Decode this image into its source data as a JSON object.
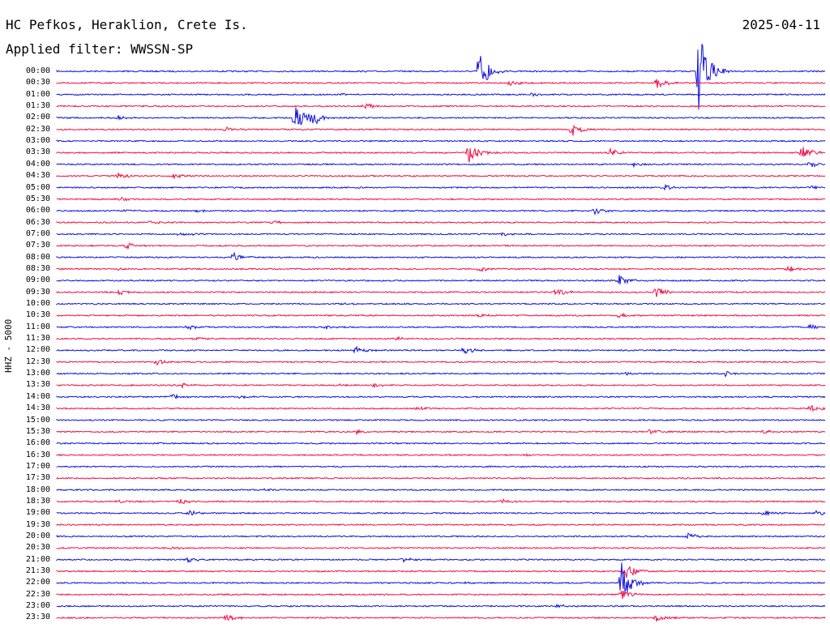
{
  "header": {
    "station": "HC Pefkos, Heraklion, Crete Is.",
    "date": "2025-04-11",
    "filter": "Applied filter: WWSSN-SP"
  },
  "channel_label": "HHZ - 5000",
  "colors": {
    "even_row": "#1010e0",
    "odd_row": "#f01048"
  },
  "rows": [
    {
      "time": "00:00",
      "events": [
        {
          "at": 0.55,
          "amp": 3.2
        },
        {
          "at": 0.835,
          "amp": 6.0
        }
      ]
    },
    {
      "time": "00:30",
      "events": [
        {
          "at": 0.59,
          "amp": 0.5
        },
        {
          "at": 0.78,
          "amp": 0.9
        }
      ]
    },
    {
      "time": "01:00",
      "events": [
        {
          "at": 0.37,
          "amp": 0.2
        },
        {
          "at": 0.62,
          "amp": 0.3
        }
      ]
    },
    {
      "time": "01:30",
      "events": [
        {
          "at": 0.4,
          "amp": 0.5
        }
      ]
    },
    {
      "time": "02:00",
      "events": [
        {
          "at": 0.31,
          "amp": 1.8
        },
        {
          "at": 0.33,
          "amp": 1.4
        },
        {
          "at": 0.08,
          "amp": 0.3
        }
      ]
    },
    {
      "time": "02:30",
      "events": [
        {
          "at": 0.22,
          "amp": 0.4
        },
        {
          "at": 0.67,
          "amp": 1.0
        }
      ]
    },
    {
      "time": "03:00",
      "events": []
    },
    {
      "time": "03:30",
      "events": [
        {
          "at": 0.535,
          "amp": 2.0
        },
        {
          "at": 0.72,
          "amp": 0.7
        },
        {
          "at": 0.97,
          "amp": 0.9
        }
      ]
    },
    {
      "time": "04:00",
      "events": [
        {
          "at": 0.75,
          "amp": 0.3
        },
        {
          "at": 0.98,
          "amp": 0.4
        }
      ]
    },
    {
      "time": "04:30",
      "events": [
        {
          "at": 0.08,
          "amp": 0.5
        },
        {
          "at": 0.15,
          "amp": 0.4
        }
      ]
    },
    {
      "time": "05:00",
      "events": [
        {
          "at": 0.79,
          "amp": 0.4
        },
        {
          "at": 0.98,
          "amp": 0.3
        }
      ]
    },
    {
      "time": "05:30",
      "events": [
        {
          "at": 0.08,
          "amp": 0.3
        }
      ]
    },
    {
      "time": "06:00",
      "events": [
        {
          "at": 0.09,
          "amp": 0.2
        },
        {
          "at": 0.18,
          "amp": 0.3
        },
        {
          "at": 0.7,
          "amp": 0.5
        }
      ]
    },
    {
      "time": "06:30",
      "events": [
        {
          "at": 0.12,
          "amp": 0.3
        },
        {
          "at": 0.28,
          "amp": 0.3
        }
      ]
    },
    {
      "time": "07:00",
      "events": [
        {
          "at": 0.16,
          "amp": 0.4
        },
        {
          "at": 0.58,
          "amp": 0.3
        }
      ]
    },
    {
      "time": "07:30",
      "events": [
        {
          "at": 0.09,
          "amp": 0.5
        }
      ]
    },
    {
      "time": "08:00",
      "events": [
        {
          "at": 0.23,
          "amp": 0.7
        }
      ]
    },
    {
      "time": "08:30",
      "events": [
        {
          "at": 0.08,
          "amp": 0.2
        },
        {
          "at": 0.55,
          "amp": 0.4
        },
        {
          "at": 0.95,
          "amp": 0.6
        }
      ]
    },
    {
      "time": "09:00",
      "events": [
        {
          "at": 0.73,
          "amp": 0.9
        }
      ]
    },
    {
      "time": "09:30",
      "events": [
        {
          "at": 0.08,
          "amp": 0.4
        },
        {
          "at": 0.65,
          "amp": 0.5
        },
        {
          "at": 0.78,
          "amp": 0.8
        }
      ]
    },
    {
      "time": "10:00",
      "events": [
        {
          "at": 0.37,
          "amp": 0.3
        }
      ]
    },
    {
      "time": "10:30",
      "events": [
        {
          "at": 0.55,
          "amp": 0.3
        },
        {
          "at": 0.73,
          "amp": 0.4
        }
      ]
    },
    {
      "time": "11:00",
      "events": [
        {
          "at": 0.17,
          "amp": 0.4
        },
        {
          "at": 0.35,
          "amp": 0.3
        },
        {
          "at": 0.98,
          "amp": 0.4
        }
      ]
    },
    {
      "time": "11:30",
      "events": [
        {
          "at": 0.18,
          "amp": 0.3
        },
        {
          "at": 0.44,
          "amp": 0.3
        }
      ]
    },
    {
      "time": "12:00",
      "events": [
        {
          "at": 0.39,
          "amp": 0.5
        },
        {
          "at": 0.53,
          "amp": 0.6
        }
      ]
    },
    {
      "time": "12:30",
      "events": [
        {
          "at": 0.13,
          "amp": 0.6
        }
      ]
    },
    {
      "time": "13:00",
      "events": [
        {
          "at": 0.74,
          "amp": 0.3
        },
        {
          "at": 0.87,
          "amp": 0.4
        }
      ]
    },
    {
      "time": "13:30",
      "events": [
        {
          "at": 0.16,
          "amp": 0.4
        },
        {
          "at": 0.37,
          "amp": 0.3
        },
        {
          "at": 0.41,
          "amp": 0.4
        }
      ]
    },
    {
      "time": "14:00",
      "events": [
        {
          "at": 0.15,
          "amp": 0.4
        },
        {
          "at": 0.24,
          "amp": 0.3
        }
      ]
    },
    {
      "time": "14:30",
      "events": [
        {
          "at": 0.47,
          "amp": 0.4
        },
        {
          "at": 0.98,
          "amp": 0.5
        }
      ]
    },
    {
      "time": "15:00",
      "events": []
    },
    {
      "time": "15:30",
      "events": [
        {
          "at": 0.39,
          "amp": 0.4
        },
        {
          "at": 0.77,
          "amp": 0.5
        },
        {
          "at": 0.92,
          "amp": 0.4
        }
      ]
    },
    {
      "time": "16:00",
      "events": []
    },
    {
      "time": "16:30",
      "events": [
        {
          "at": 0.61,
          "amp": 0.2
        }
      ]
    },
    {
      "time": "17:00",
      "events": []
    },
    {
      "time": "17:30",
      "events": []
    },
    {
      "time": "18:00",
      "events": [
        {
          "at": 0.27,
          "amp": 0.2
        }
      ]
    },
    {
      "time": "18:30",
      "events": [
        {
          "at": 0.08,
          "amp": 0.3
        },
        {
          "at": 0.16,
          "amp": 0.4
        },
        {
          "at": 0.58,
          "amp": 0.3
        }
      ]
    },
    {
      "time": "19:00",
      "events": [
        {
          "at": 0.17,
          "amp": 0.5
        },
        {
          "at": 0.92,
          "amp": 0.4
        },
        {
          "at": 0.99,
          "amp": 0.5
        }
      ]
    },
    {
      "time": "19:30",
      "events": []
    },
    {
      "time": "20:00",
      "events": [
        {
          "at": 0.82,
          "amp": 0.7
        }
      ]
    },
    {
      "time": "20:30",
      "events": [
        {
          "at": 0.15,
          "amp": 0.2
        }
      ]
    },
    {
      "time": "21:00",
      "events": [
        {
          "at": 0.17,
          "amp": 0.5
        },
        {
          "at": 0.45,
          "amp": 0.4
        }
      ]
    },
    {
      "time": "21:30",
      "events": [
        {
          "at": 0.74,
          "amp": 1.2
        }
      ]
    },
    {
      "time": "22:00",
      "events": [
        {
          "at": 0.735,
          "amp": 3.0
        },
        {
          "at": 0.53,
          "amp": 0.2
        }
      ]
    },
    {
      "time": "22:30",
      "events": [
        {
          "at": 0.735,
          "amp": 0.8
        }
      ]
    },
    {
      "time": "23:00",
      "events": [
        {
          "at": 0.65,
          "amp": 0.3
        }
      ]
    },
    {
      "time": "23:30",
      "events": [
        {
          "at": 0.22,
          "amp": 0.6
        },
        {
          "at": 0.78,
          "amp": 0.5
        }
      ]
    }
  ]
}
